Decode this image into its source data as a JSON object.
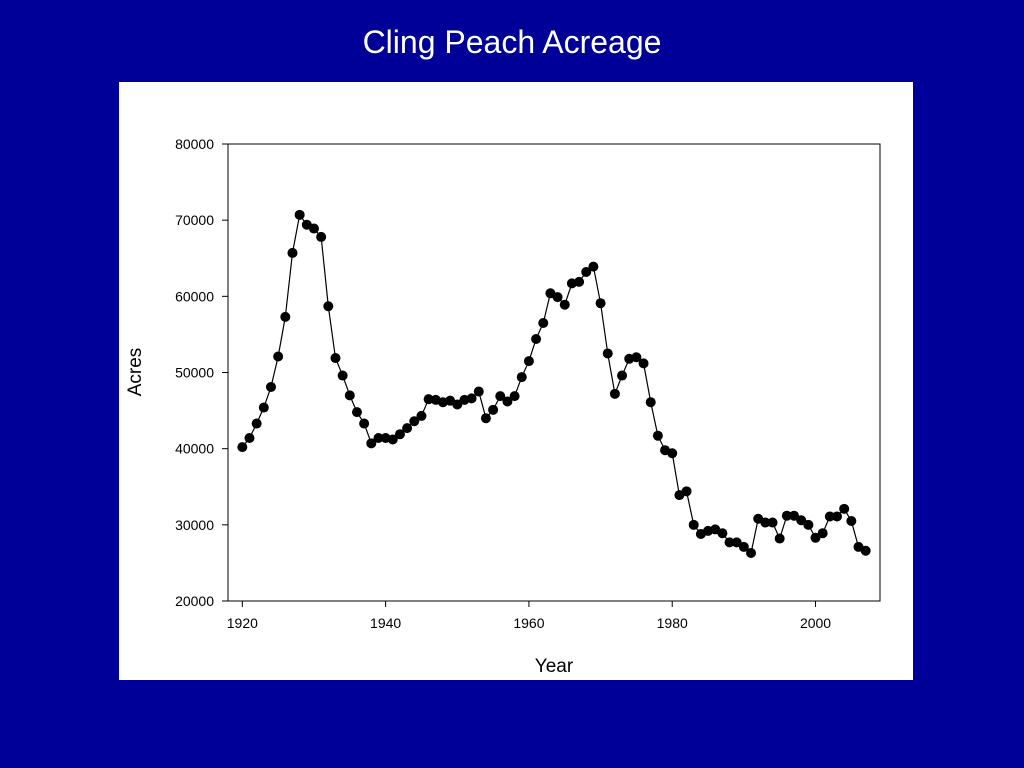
{
  "slide": {
    "title": "Cling Peach Acreage",
    "background_color": "#000099",
    "panel_color": "#ffffff"
  },
  "chart_data": {
    "type": "line",
    "title": "Cling Peach Acreage",
    "xlabel": "Year",
    "ylabel": "Acres",
    "xlim": [
      1918,
      2009
    ],
    "ylim": [
      20000,
      80000
    ],
    "xticks": [
      1920,
      1940,
      1960,
      1980,
      2000
    ],
    "yticks": [
      20000,
      30000,
      40000,
      50000,
      60000,
      70000,
      80000
    ],
    "grid": false,
    "legend": "none",
    "marker": "filled-circle",
    "line_color": "#000000",
    "series": [
      {
        "x": [
          1920,
          1921,
          1922,
          1923,
          1924,
          1925,
          1926,
          1927,
          1928,
          1929,
          1930,
          1931,
          1932,
          1933,
          1934,
          1935,
          1936,
          1937,
          1938,
          1939,
          1940,
          1941,
          1942,
          1943,
          1944,
          1945,
          1946,
          1947,
          1948,
          1949,
          1950,
          1951,
          1952,
          1953,
          1954,
          1955,
          1956,
          1957,
          1958,
          1959,
          1960,
          1961,
          1962,
          1963,
          1964,
          1965,
          1966,
          1967,
          1968,
          1969,
          1970,
          1971,
          1972,
          1973,
          1974,
          1975,
          1976,
          1977,
          1978,
          1979,
          1980,
          1981,
          1982,
          1983,
          1984,
          1985,
          1986,
          1987,
          1988,
          1989,
          1990,
          1991,
          1992,
          1993,
          1994,
          1995,
          1996,
          1997,
          1998,
          1999,
          2000,
          2001,
          2002,
          2003,
          2004,
          2005,
          2006,
          2007
        ],
        "values": [
          40200,
          41400,
          43300,
          45400,
          48100,
          52100,
          57300,
          65700,
          70700,
          69400,
          68900,
          67800,
          58700,
          51900,
          49600,
          47000,
          44800,
          43300,
          40700,
          41400,
          41400,
          41200,
          41900,
          42700,
          43600,
          44300,
          46500,
          46400,
          46100,
          46300,
          45800,
          46400,
          46600,
          47500,
          44000,
          45100,
          46900,
          46200,
          46900,
          49400,
          51500,
          54400,
          56500,
          60400,
          59900,
          58900,
          61700,
          61900,
          63200,
          63900,
          59100,
          52500,
          47200,
          49600,
          51800,
          52000,
          51200,
          46100,
          41700,
          39800,
          39400,
          33900,
          34400,
          30000,
          28800,
          29200,
          29400,
          28900,
          27700,
          27700,
          27100,
          26300,
          30800,
          30300,
          30300,
          28200,
          31200,
          31200,
          30600,
          30000,
          28300,
          28900,
          31100,
          31100,
          32100,
          30500,
          27100,
          26600
        ]
      }
    ]
  }
}
